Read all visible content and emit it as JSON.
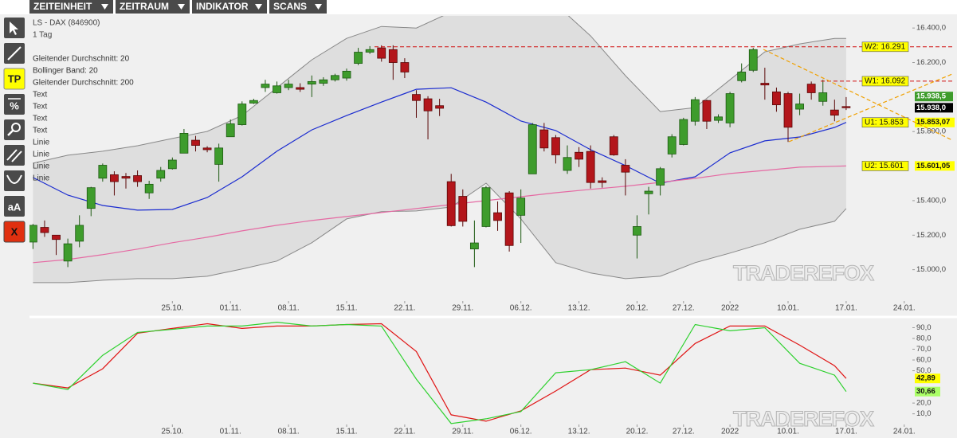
{
  "menu": [
    "ZEITEINHEIT",
    "ZEITRAUM",
    "INDIKATOR",
    "SCANS"
  ],
  "toolbar": {
    "tp": "TP",
    "percent": "%",
    "text": "aA",
    "delete": "X"
  },
  "watermark": "TRADEREFOX",
  "chart_data": [
    {
      "type": "candlestick",
      "title": "LS - DAX (846900)",
      "subtitle": "1 Tag",
      "up_color": "#3e9c2c",
      "down_color": "#b3161b",
      "open": [
        15160,
        15245,
        15200,
        15050,
        15165,
        15355,
        15530,
        15550,
        15540,
        15545,
        15445,
        15530,
        15585,
        15675,
        15750,
        15705,
        15610,
        15770,
        15840,
        15965,
        16055,
        16025,
        16055,
        16055,
        16075,
        16080,
        16100,
        16110,
        16195,
        16260,
        16285,
        16275,
        16200,
        16015,
        15990,
        15950,
        15510,
        15425,
        15120,
        15250,
        15330,
        15445,
        15315,
        15555,
        15810,
        15765,
        15575,
        15680,
        15685,
        15515,
        15770,
        15605,
        15200,
        15440,
        15490,
        15670,
        15725,
        15860,
        15980,
        15865,
        15850,
        16095,
        16155,
        16080,
        16030,
        16020,
        15930,
        16075,
        15975,
        15925,
        15945
      ],
      "high": [
        15265,
        15285,
        15200,
        15180,
        15315,
        15480,
        15615,
        15570,
        15560,
        15575,
        15515,
        15595,
        15650,
        15815,
        15775,
        15715,
        15730,
        15870,
        15975,
        15990,
        16100,
        16090,
        16100,
        16080,
        16125,
        16115,
        16135,
        16165,
        16285,
        16295,
        16300,
        16300,
        16225,
        16040,
        16005,
        15990,
        15555,
        15465,
        15285,
        15485,
        15395,
        15455,
        15465,
        15850,
        15850,
        15780,
        15720,
        15710,
        15720,
        15535,
        15780,
        15640,
        15315,
        15480,
        15595,
        15785,
        15880,
        16000,
        15985,
        15900,
        16030,
        16195,
        16285,
        16170,
        16055,
        16030,
        16020,
        16090,
        16100,
        15985,
        16000
      ],
      "low": [
        15120,
        15190,
        15085,
        15015,
        15130,
        15310,
        15510,
        15430,
        15470,
        15480,
        15410,
        15510,
        15580,
        15675,
        15685,
        15680,
        15510,
        15770,
        15835,
        15960,
        16030,
        16020,
        16040,
        16030,
        16000,
        16065,
        16090,
        16095,
        16185,
        16250,
        16205,
        16100,
        16110,
        15880,
        15755,
        15890,
        15250,
        15250,
        15015,
        15245,
        15225,
        15105,
        15155,
        15555,
        15685,
        15615,
        15555,
        15595,
        15470,
        15475,
        15660,
        15430,
        15065,
        15320,
        15430,
        15650,
        15720,
        15835,
        15815,
        15850,
        15825,
        16085,
        16145,
        15985,
        15915,
        15740,
        15895,
        15985,
        15950,
        15860,
        15925
      ],
      "close": [
        15257,
        15215,
        15175,
        15150,
        15257,
        15475,
        15605,
        15510,
        15530,
        15510,
        15495,
        15575,
        15635,
        15790,
        15720,
        15695,
        15705,
        15845,
        15960,
        15980,
        16075,
        16065,
        16075,
        16045,
        16090,
        16100,
        16125,
        16150,
        16260,
        16275,
        16225,
        16200,
        16145,
        15980,
        15920,
        15935,
        15255,
        15280,
        15155,
        15475,
        15285,
        15140,
        15415,
        15840,
        15705,
        15665,
        15650,
        15640,
        15505,
        15505,
        15665,
        15565,
        15250,
        15455,
        15585,
        15770,
        15870,
        15985,
        15860,
        15885,
        16020,
        16145,
        16275,
        16070,
        15955,
        15825,
        15960,
        16025,
        16025,
        15895,
        15938
      ],
      "last_close_label": "15.938,0",
      "quote_label": {
        "value": 15938.5,
        "label": "15.938,5"
      },
      "series": [
        {
          "name": "Gleitender Durchschnitt: 20",
          "color": "#1a2bd0",
          "x": [
            0,
            3,
            6,
            9,
            12,
            15,
            18,
            21,
            24,
            27,
            30,
            33,
            36,
            39,
            42,
            45,
            48,
            51,
            54,
            57,
            60,
            63,
            66,
            69,
            70
          ],
          "values": [
            15534,
            15432,
            15372,
            15345,
            15349,
            15418,
            15538,
            15686,
            15810,
            15893,
            15971,
            16045,
            16054,
            15971,
            15861,
            15806,
            15695,
            15603,
            15501,
            15538,
            15677,
            15746,
            15769,
            15824,
            15853.07
          ],
          "last_value_label": "15.853,07"
        },
        {
          "name": "Bollinger Band: 20",
          "color": "#888888",
          "fill": "#dedede",
          "x": [
            0,
            3,
            6,
            9,
            12,
            15,
            18,
            21,
            24,
            27,
            30,
            33,
            36,
            39,
            42,
            45,
            48,
            51,
            54,
            57,
            60,
            63,
            66,
            69,
            70
          ],
          "upper": [
            15617,
            15663,
            15686,
            15718,
            15760,
            15801,
            15893,
            16054,
            16216,
            16340,
            16409,
            16400,
            16492,
            16607,
            16653,
            16538,
            16354,
            16124,
            15916,
            15939,
            16100,
            16262,
            16308,
            16340,
            16340
          ],
          "lower": [
            14925,
            14925,
            14939,
            14948,
            14948,
            14962,
            15004,
            15050,
            15156,
            15294,
            15336,
            15340,
            15363,
            15501,
            15294,
            15041,
            14981,
            14948,
            14962,
            15041,
            15096,
            15156,
            15234,
            15280,
            15354
          ]
        },
        {
          "name": "Gleitender Durchschnitt: 200",
          "color": "#e56aa3",
          "x": [
            0,
            3,
            6,
            9,
            12,
            15,
            18,
            21,
            24,
            27,
            30,
            33,
            36,
            39,
            42,
            45,
            48,
            51,
            54,
            57,
            60,
            63,
            66,
            69,
            70
          ],
          "values": [
            15041,
            15059,
            15087,
            15119,
            15156,
            15188,
            15225,
            15257,
            15285,
            15308,
            15331,
            15354,
            15377,
            15400,
            15423,
            15446,
            15465,
            15483,
            15506,
            15529,
            15557,
            15575,
            15594,
            15599,
            15601.05
          ],
          "last_value_label": "15.601,05"
        }
      ],
      "drawings": [
        {
          "name": "Text",
          "color": "#777777"
        },
        {
          "name": "Text",
          "color": "#777777"
        },
        {
          "name": "Text",
          "color": "#777777"
        },
        {
          "name": "Text",
          "color": "#777777"
        },
        {
          "name": "Linie",
          "color": "#d01010"
        },
        {
          "name": "Linie",
          "color": "#d01010"
        },
        {
          "name": "Linie",
          "color": "#f0a000"
        },
        {
          "name": "Linie",
          "color": "#f0a000"
        }
      ],
      "levels": [
        {
          "label": "W2: 16.291",
          "value": 16291,
          "dashed": true
        },
        {
          "label": "W1: 16.092",
          "value": 16092,
          "dashed": true
        },
        {
          "label": "U1: 15.853",
          "value": 15853,
          "dashed": false
        },
        {
          "label": "U2: 15.601",
          "value": 15601,
          "dashed": false
        }
      ],
      "ylim": [
        14740,
        16470
      ],
      "yticks": [
        {
          "value": 16400,
          "label": "16.400,0"
        },
        {
          "value": 16200,
          "label": "16.200,0"
        },
        {
          "value": 15800,
          "label": "15.800,0"
        },
        {
          "value": 15400,
          "label": "15.400,0"
        },
        {
          "value": 15200,
          "label": "15.200,0"
        },
        {
          "value": 15000,
          "label": "15.000,0"
        }
      ],
      "xlim": [
        -0.3,
        75.7
      ],
      "xticks": [
        {
          "value": 12,
          "label": "25.10."
        },
        {
          "value": 17,
          "label": "01.11."
        },
        {
          "value": 22,
          "label": "08.11."
        },
        {
          "value": 27,
          "label": "15.11."
        },
        {
          "value": 32,
          "label": "22.11."
        },
        {
          "value": 37,
          "label": "29.11."
        },
        {
          "value": 42,
          "label": "06.12."
        },
        {
          "value": 47,
          "label": "13.12."
        },
        {
          "value": 52,
          "label": "20.12."
        },
        {
          "value": 56,
          "label": "27.12."
        },
        {
          "value": 60,
          "label": "2022"
        },
        {
          "value": 65,
          "label": "10.01."
        },
        {
          "value": 70,
          "label": "17.01."
        },
        {
          "value": 75,
          "label": "24.01."
        }
      ]
    },
    {
      "type": "line",
      "x": [
        0,
        3,
        6,
        9,
        12,
        15,
        18,
        21,
        24,
        27,
        30,
        33,
        36,
        39,
        42,
        45,
        48,
        51,
        54,
        57,
        60,
        63,
        66,
        69,
        70
      ],
      "series": [
        {
          "color": "#e01515",
          "values": [
            38.5,
            34.1,
            51.8,
            84.9,
            89.3,
            93.7,
            89.3,
            91.5,
            91.5,
            92.9,
            93.7,
            67.9,
            9.1,
            3.2,
            12.8,
            31.2,
            51.0,
            52.5,
            45.9,
            75.3,
            91.5,
            91.5,
            73.8,
            54.7,
            42.89
          ],
          "last_value_label": "42,89",
          "label_bg": "#ffff00"
        },
        {
          "color": "#2fd12f",
          "values": [
            38.5,
            32.6,
            64.3,
            85.6,
            88.5,
            91.5,
            91.5,
            95.1,
            91.5,
            92.9,
            91.5,
            42.2,
            1.0,
            5.4,
            12.1,
            48.1,
            51.0,
            58.4,
            38.5,
            92.9,
            87.1,
            90.0,
            56.9,
            45.9,
            30.66
          ],
          "last_value_label": "30,66",
          "label_bg": "#aaff66"
        }
      ],
      "ylim": [
        -8,
        97
      ],
      "yticks": [
        {
          "value": 90,
          "label": "90,0"
        },
        {
          "value": 80,
          "label": "80,0"
        },
        {
          "value": 70,
          "label": "70,0"
        },
        {
          "value": 60,
          "label": "60,0"
        },
        {
          "value": 50,
          "label": "50,0"
        },
        {
          "value": 20,
          "label": "20,0"
        },
        {
          "value": 10,
          "label": "10,0"
        }
      ],
      "xlim": [
        -0.3,
        75.7
      ],
      "xticks": [
        {
          "value": 12,
          "label": "25.10."
        },
        {
          "value": 17,
          "label": "01.11."
        },
        {
          "value": 22,
          "label": "08.11."
        },
        {
          "value": 27,
          "label": "15.11."
        },
        {
          "value": 32,
          "label": "22.11."
        },
        {
          "value": 37,
          "label": "29.11."
        },
        {
          "value": 42,
          "label": "06.12."
        },
        {
          "value": 47,
          "label": "13.12."
        },
        {
          "value": 52,
          "label": "20.12."
        },
        {
          "value": 56,
          "label": "27.12."
        },
        {
          "value": 60,
          "label": "2022"
        },
        {
          "value": 65,
          "label": "10.01."
        },
        {
          "value": 70,
          "label": "17.01."
        },
        {
          "value": 75,
          "label": "24.01."
        }
      ]
    }
  ]
}
